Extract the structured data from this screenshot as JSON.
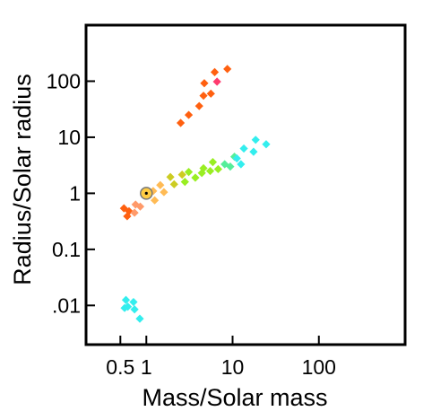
{
  "chart_data": {
    "type": "scatter",
    "title": "",
    "xlabel": "Mass/Solar mass",
    "ylabel": "Radius/Solar radius",
    "xscale": "log",
    "yscale": "log",
    "xlim": [
      0.2,
      1000
    ],
    "ylim": [
      0.002,
      1000
    ],
    "grid": false,
    "x_ticks": [
      {
        "value": 0.5,
        "label": "0.5"
      },
      {
        "value": 1,
        "label": "1"
      },
      {
        "value": 10,
        "label": "10"
      },
      {
        "value": 100,
        "label": "100"
      }
    ],
    "y_ticks": [
      {
        "value": 0.01,
        "label": ".01"
      },
      {
        "value": 0.1,
        "label": "0.1"
      },
      {
        "value": 1,
        "label": "1"
      },
      {
        "value": 10,
        "label": "10"
      },
      {
        "value": 100,
        "label": "100"
      }
    ],
    "series": [
      {
        "color": "#ff6010",
        "points": [
          [
            2.5,
            18
          ],
          [
            3.1,
            25
          ],
          [
            4.1,
            36
          ],
          [
            4.6,
            55
          ],
          [
            5.6,
            60
          ],
          [
            4.7,
            92
          ],
          [
            6.2,
            145
          ],
          [
            8.7,
            165
          ],
          [
            0.55,
            0.54
          ],
          [
            0.6,
            0.39
          ],
          [
            0.63,
            0.48
          ]
        ]
      },
      {
        "color": "#ff3a6e",
        "points": [
          [
            6.6,
            98
          ]
        ]
      },
      {
        "color": "#ff9a6a",
        "points": [
          [
            0.73,
            0.45
          ],
          [
            0.75,
            0.63
          ],
          [
            0.85,
            0.58
          ]
        ]
      },
      {
        "color": "#ffbb55",
        "points": [
          [
            1.25,
            0.75
          ],
          [
            1.2,
            1.1
          ],
          [
            1.45,
            1.4
          ],
          [
            1.6,
            1.05
          ]
        ]
      },
      {
        "color": "#cccc22",
        "points": [
          [
            1.9,
            1.95
          ],
          [
            2.1,
            1.45
          ],
          [
            2.6,
            2.15
          ]
        ]
      },
      {
        "color": "#99ee22",
        "points": [
          [
            2.8,
            1.6
          ],
          [
            3.1,
            2.4
          ],
          [
            3.7,
            1.9
          ],
          [
            4.4,
            2.3
          ],
          [
            4.6,
            2.8
          ],
          [
            5.5,
            2.5
          ],
          [
            5.9,
            3.6
          ],
          [
            6.8,
            2.7
          ]
        ]
      },
      {
        "color": "#55ee99",
        "points": [
          [
            8.1,
            3.3
          ],
          [
            9.4,
            3.0
          ],
          [
            10.5,
            4.5
          ]
        ]
      },
      {
        "color": "#33eeee",
        "points": [
          [
            11.2,
            4.2
          ],
          [
            12.5,
            3.3
          ],
          [
            13.5,
            6.3
          ],
          [
            17.5,
            5.5
          ],
          [
            18.5,
            9.0
          ],
          [
            24.5,
            7.5
          ],
          [
            0.56,
            0.009
          ],
          [
            0.58,
            0.0125
          ],
          [
            0.61,
            0.0095
          ],
          [
            0.71,
            0.0115
          ],
          [
            0.73,
            0.0085
          ],
          [
            0.84,
            0.0058
          ]
        ]
      }
    ],
    "highlight": {
      "x": 1,
      "y": 1,
      "fill": "#ffcc44",
      "ring": "#777777",
      "center": "#000000"
    }
  }
}
